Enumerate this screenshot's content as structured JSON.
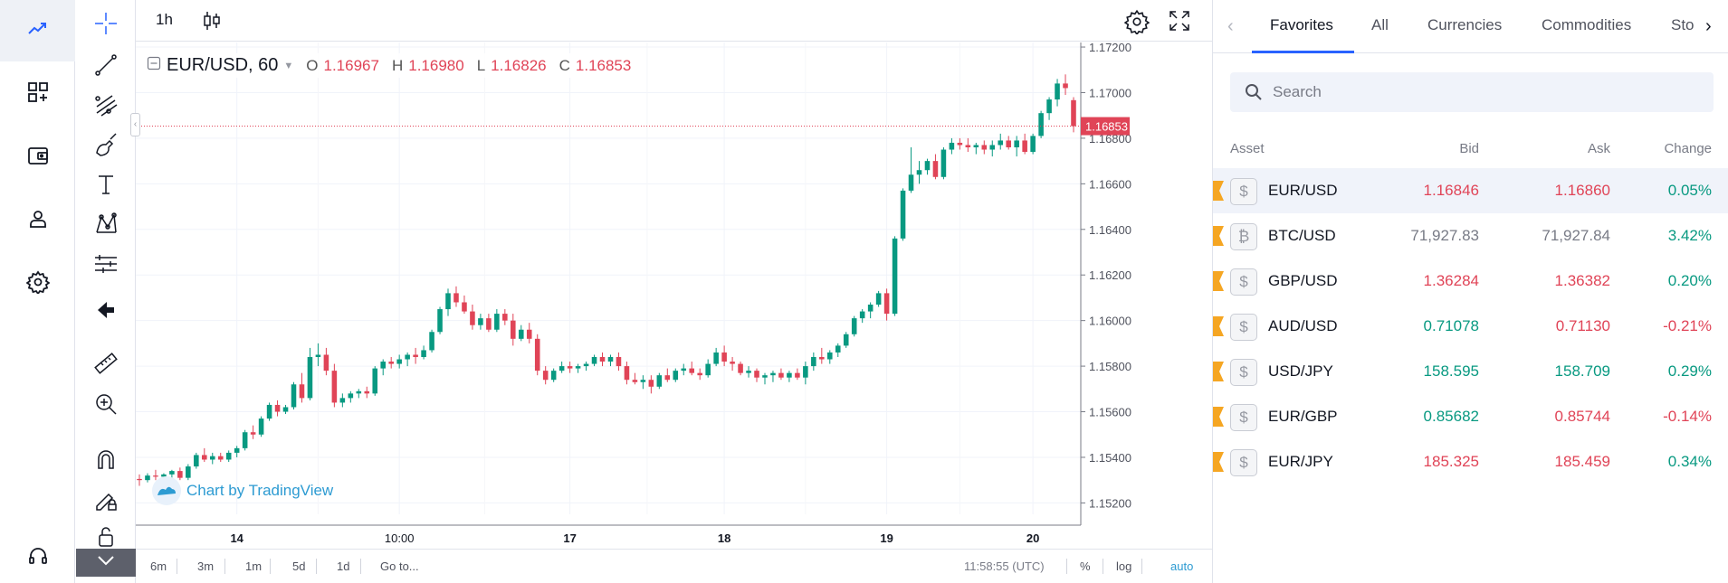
{
  "toolbar": {
    "interval": "1h"
  },
  "legend": {
    "symbol": "EUR/USD, 60",
    "o_label": "O",
    "o_value": "1.16967",
    "h_label": "H",
    "h_value": "1.16980",
    "l_label": "L",
    "l_value": "1.16826",
    "c_label": "C",
    "c_value": "1.16853"
  },
  "watermark": "Chart by TradingView",
  "bottom": {
    "ranges": [
      "6m",
      "3m",
      "1m",
      "5d",
      "1d"
    ],
    "goto": "Go to...",
    "clock": "11:58:55 (UTC)",
    "percent": "%",
    "log": "log",
    "auto": "auto"
  },
  "chart_data": {
    "type": "candlestick",
    "symbol": "EUR/USD, 60",
    "price_ticks": [
      "1.17200",
      "1.17000",
      "1.16800",
      "1.16600",
      "1.16400",
      "1.16200",
      "1.16000",
      "1.15800",
      "1.15600",
      "1.15400",
      "1.15200"
    ],
    "y_range": [
      1.1515,
      1.1722
    ],
    "time_ticks": [
      "14",
      "10:00",
      "17",
      "18",
      "19",
      "20"
    ],
    "last_price": "1.16853",
    "candles": [
      [
        1.15305,
        1.15325,
        1.15275,
        1.153
      ],
      [
        1.153,
        1.1533,
        1.1529,
        1.1532
      ],
      [
        1.1532,
        1.15345,
        1.153,
        1.15315
      ],
      [
        1.15315,
        1.1533,
        1.1529,
        1.15325
      ],
      [
        1.15325,
        1.15345,
        1.1531,
        1.1534
      ],
      [
        1.1534,
        1.15355,
        1.153,
        1.1531
      ],
      [
        1.1531,
        1.1537,
        1.153,
        1.1536
      ],
      [
        1.1536,
        1.1542,
        1.1535,
        1.1541
      ],
      [
        1.1541,
        1.1544,
        1.1538,
        1.1539
      ],
      [
        1.1539,
        1.1542,
        1.1537,
        1.15405
      ],
      [
        1.15405,
        1.1542,
        1.1538,
        1.1539
      ],
      [
        1.1539,
        1.1543,
        1.1538,
        1.1542
      ],
      [
        1.1542,
        1.1545,
        1.154,
        1.1544
      ],
      [
        1.1544,
        1.1552,
        1.1543,
        1.1551
      ],
      [
        1.1551,
        1.1554,
        1.1548,
        1.155
      ],
      [
        1.155,
        1.1558,
        1.1549,
        1.1557
      ],
      [
        1.1557,
        1.1564,
        1.1556,
        1.1563
      ],
      [
        1.1563,
        1.1565,
        1.1558,
        1.156
      ],
      [
        1.156,
        1.1563,
        1.1559,
        1.1562
      ],
      [
        1.1562,
        1.1573,
        1.1561,
        1.1572
      ],
      [
        1.1572,
        1.1577,
        1.1564,
        1.1566
      ],
      [
        1.1566,
        1.1588,
        1.1565,
        1.1584
      ],
      [
        1.1584,
        1.159,
        1.158,
        1.1585
      ],
      [
        1.1585,
        1.1588,
        1.1576,
        1.1578
      ],
      [
        1.1578,
        1.1581,
        1.1562,
        1.1564
      ],
      [
        1.1564,
        1.1568,
        1.1562,
        1.1566
      ],
      [
        1.1566,
        1.1569,
        1.1564,
        1.1568
      ],
      [
        1.1568,
        1.157,
        1.1566,
        1.1569
      ],
      [
        1.1569,
        1.1571,
        1.1566,
        1.1568
      ],
      [
        1.1568,
        1.158,
        1.1567,
        1.1579
      ],
      [
        1.1579,
        1.1583,
        1.1576,
        1.1582
      ],
      [
        1.1582,
        1.1584,
        1.1579,
        1.1581
      ],
      [
        1.1581,
        1.1585,
        1.1579,
        1.1583
      ],
      [
        1.1583,
        1.1586,
        1.158,
        1.1585
      ],
      [
        1.1585,
        1.1588,
        1.1581,
        1.1584
      ],
      [
        1.1584,
        1.1589,
        1.1583,
        1.1587
      ],
      [
        1.1587,
        1.1596,
        1.1586,
        1.1595
      ],
      [
        1.1595,
        1.1606,
        1.1594,
        1.1605
      ],
      [
        1.1605,
        1.1614,
        1.1602,
        1.1612
      ],
      [
        1.1612,
        1.1615,
        1.1606,
        1.1608
      ],
      [
        1.1608,
        1.1611,
        1.1603,
        1.1604
      ],
      [
        1.1604,
        1.1607,
        1.1596,
        1.1598
      ],
      [
        1.1598,
        1.1603,
        1.1596,
        1.1601
      ],
      [
        1.1601,
        1.1603,
        1.1595,
        1.1596
      ],
      [
        1.1596,
        1.1605,
        1.1595,
        1.1603
      ],
      [
        1.1603,
        1.1605,
        1.1598,
        1.16
      ],
      [
        1.16,
        1.1603,
        1.1589,
        1.1592
      ],
      [
        1.1592,
        1.1598,
        1.1591,
        1.1596
      ],
      [
        1.1596,
        1.1599,
        1.159,
        1.1592
      ],
      [
        1.1592,
        1.1594,
        1.1576,
        1.1578
      ],
      [
        1.1578,
        1.158,
        1.1572,
        1.1574
      ],
      [
        1.1574,
        1.1579,
        1.1573,
        1.1578
      ],
      [
        1.1578,
        1.1582,
        1.1577,
        1.158
      ],
      [
        1.158,
        1.1582,
        1.1577,
        1.1579
      ],
      [
        1.1579,
        1.1581,
        1.1577,
        1.158
      ],
      [
        1.158,
        1.1582,
        1.1578,
        1.1581
      ],
      [
        1.1581,
        1.1585,
        1.158,
        1.1584
      ],
      [
        1.1584,
        1.1586,
        1.158,
        1.1582
      ],
      [
        1.1582,
        1.1585,
        1.158,
        1.1584
      ],
      [
        1.1584,
        1.1586,
        1.1578,
        1.158
      ],
      [
        1.158,
        1.1582,
        1.1572,
        1.1574
      ],
      [
        1.1574,
        1.1577,
        1.1572,
        1.1573
      ],
      [
        1.1573,
        1.1576,
        1.157,
        1.1574
      ],
      [
        1.1574,
        1.1576,
        1.1568,
        1.1571
      ],
      [
        1.1571,
        1.1577,
        1.157,
        1.1576
      ],
      [
        1.1576,
        1.1579,
        1.1573,
        1.1574
      ],
      [
        1.1574,
        1.1579,
        1.1573,
        1.1578
      ],
      [
        1.1578,
        1.1581,
        1.1576,
        1.1579
      ],
      [
        1.1579,
        1.1582,
        1.1576,
        1.1577
      ],
      [
        1.1577,
        1.1579,
        1.1574,
        1.1576
      ],
      [
        1.1576,
        1.1583,
        1.1575,
        1.1581
      ],
      [
        1.1581,
        1.1588,
        1.158,
        1.1586
      ],
      [
        1.1586,
        1.1589,
        1.158,
        1.1582
      ],
      [
        1.1582,
        1.1584,
        1.1578,
        1.1581
      ],
      [
        1.1581,
        1.1582,
        1.1576,
        1.1577
      ],
      [
        1.1577,
        1.158,
        1.1575,
        1.1578
      ],
      [
        1.1578,
        1.1579,
        1.1573,
        1.1575
      ],
      [
        1.1575,
        1.1577,
        1.1572,
        1.1576
      ],
      [
        1.1576,
        1.1578,
        1.1573,
        1.1577
      ],
      [
        1.1577,
        1.1579,
        1.1574,
        1.1575
      ],
      [
        1.1575,
        1.1578,
        1.1573,
        1.1577
      ],
      [
        1.1577,
        1.1579,
        1.1574,
        1.1575
      ],
      [
        1.1575,
        1.1582,
        1.1572,
        1.158
      ],
      [
        1.158,
        1.1586,
        1.1578,
        1.1584
      ],
      [
        1.1584,
        1.1588,
        1.1581,
        1.1583
      ],
      [
        1.1583,
        1.1587,
        1.1581,
        1.1586
      ],
      [
        1.1586,
        1.159,
        1.1584,
        1.1589
      ],
      [
        1.1589,
        1.1595,
        1.1588,
        1.1594
      ],
      [
        1.1594,
        1.1602,
        1.1593,
        1.1601
      ],
      [
        1.1601,
        1.1605,
        1.1599,
        1.1604
      ],
      [
        1.1604,
        1.1608,
        1.1601,
        1.1607
      ],
      [
        1.1607,
        1.1613,
        1.1606,
        1.1612
      ],
      [
        1.1612,
        1.1614,
        1.16,
        1.1603
      ],
      [
        1.1603,
        1.1637,
        1.1602,
        1.1636
      ],
      [
        1.1636,
        1.1658,
        1.1635,
        1.1657
      ],
      [
        1.1657,
        1.1676,
        1.1656,
        1.1664
      ],
      [
        1.1664,
        1.167,
        1.166,
        1.1666
      ],
      [
        1.1666,
        1.1671,
        1.1664,
        1.167
      ],
      [
        1.167,
        1.1673,
        1.1662,
        1.1663
      ],
      [
        1.1663,
        1.1676,
        1.1662,
        1.1675
      ],
      [
        1.1675,
        1.168,
        1.1673,
        1.1678
      ],
      [
        1.1678,
        1.168,
        1.1675,
        1.1677
      ],
      [
        1.1677,
        1.168,
        1.1674,
        1.1676
      ],
      [
        1.1676,
        1.1678,
        1.1673,
        1.1677
      ],
      [
        1.1677,
        1.1679,
        1.1673,
        1.1675
      ],
      [
        1.1675,
        1.1679,
        1.1672,
        1.1677
      ],
      [
        1.1677,
        1.1682,
        1.1675,
        1.1679
      ],
      [
        1.1679,
        1.1681,
        1.1675,
        1.1676
      ],
      [
        1.1676,
        1.1681,
        1.1672,
        1.1679
      ],
      [
        1.1679,
        1.1682,
        1.1673,
        1.1674
      ],
      [
        1.1674,
        1.1682,
        1.1673,
        1.1681
      ],
      [
        1.1681,
        1.1692,
        1.168,
        1.1691
      ],
      [
        1.1691,
        1.1698,
        1.1688,
        1.1697
      ],
      [
        1.1697,
        1.1706,
        1.1694,
        1.1704
      ],
      [
        1.1704,
        1.1708,
        1.1699,
        1.1702
      ],
      [
        1.16967,
        1.1698,
        1.16826,
        1.16853
      ]
    ]
  },
  "panel": {
    "tabs": [
      "Favorites",
      "All",
      "Currencies",
      "Commodities",
      "Sto"
    ],
    "search_placeholder": "Search",
    "headers": {
      "asset": "Asset",
      "bid": "Bid",
      "ask": "Ask",
      "change": "Change"
    },
    "rows": [
      {
        "icon": "$",
        "asset": "EUR/USD",
        "bid": "1.16846",
        "ask": "1.16860",
        "change": "0.05%",
        "bid_dir": "dn",
        "ask_dir": "dn",
        "chg_dir": "up",
        "selected": true
      },
      {
        "icon": "₿",
        "asset": "BTC/USD",
        "bid": "71,927.83",
        "ask": "71,927.84",
        "change": "3.42%",
        "bid_dir": "nt",
        "ask_dir": "nt",
        "chg_dir": "up",
        "selected": false
      },
      {
        "icon": "$",
        "asset": "GBP/USD",
        "bid": "1.36284",
        "ask": "1.36382",
        "change": "0.20%",
        "bid_dir": "dn",
        "ask_dir": "dn",
        "chg_dir": "up",
        "selected": false
      },
      {
        "icon": "$",
        "asset": "AUD/USD",
        "bid": "0.71078",
        "ask": "0.71130",
        "change": "-0.21%",
        "bid_dir": "up",
        "ask_dir": "dn",
        "chg_dir": "dn",
        "selected": false
      },
      {
        "icon": "$",
        "asset": "USD/JPY",
        "bid": "158.595",
        "ask": "158.709",
        "change": "0.29%",
        "bid_dir": "up",
        "ask_dir": "up",
        "chg_dir": "up",
        "selected": false
      },
      {
        "icon": "$",
        "asset": "EUR/GBP",
        "bid": "0.85682",
        "ask": "0.85744",
        "change": "-0.14%",
        "bid_dir": "up",
        "ask_dir": "dn",
        "chg_dir": "dn",
        "selected": false
      },
      {
        "icon": "$",
        "asset": "EUR/JPY",
        "bid": "185.325",
        "ask": "185.459",
        "change": "0.34%",
        "bid_dir": "dn",
        "ask_dir": "dn",
        "chg_dir": "up",
        "selected": false
      }
    ]
  },
  "colors": {
    "up": "#089981",
    "down": "#e04457",
    "accent": "#2962ff",
    "favorite_flag": "#f5a623"
  }
}
